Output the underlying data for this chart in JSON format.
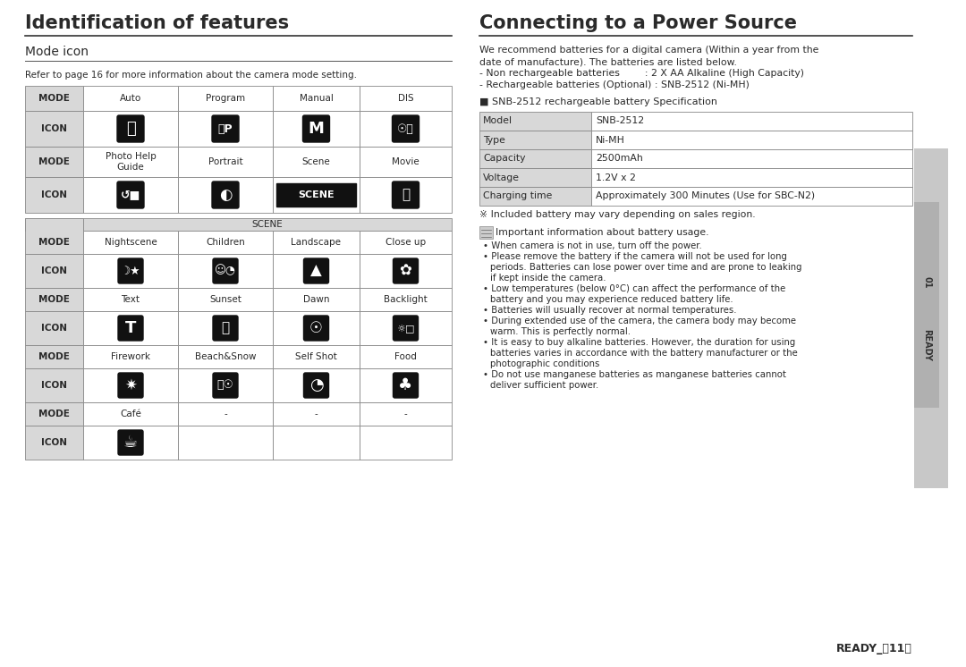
{
  "title_left": "Identification of features",
  "title_right": "Connecting to a Power Source",
  "subtitle_left": "Mode icon",
  "refer_text": "Refer to page 16 for more information about the camera mode setting.",
  "intro_lines": [
    "We recommend batteries for a digital camera (Within a year from the",
    "date of manufacture). The batteries are listed below.",
    "- Non rechargeable batteries        : 2 X AA Alkaline (High Capacity)",
    "- Rechargeable batteries (Optional) : SNB-2512 (Ni-MH)"
  ],
  "spec_title": "■ SNB-2512 rechargeable battery Specification",
  "battery_table": [
    [
      "Model",
      "SNB-2512"
    ],
    [
      "Type",
      "Ni-MH"
    ],
    [
      "Capacity",
      "2500mAh"
    ],
    [
      "Voltage",
      "1.2V x 2"
    ],
    [
      "Charging time",
      "Approximately 300 Minutes (Use for SBC-N2)"
    ]
  ],
  "included_note": "※ Included battery may vary depending on sales region.",
  "battery_bullets": [
    "Important information about battery usage.",
    "When camera is not in use, turn off the power.",
    "Please remove the battery if the camera will not be used for long\n    periods. Batteries can lose power over time and are prone to leaking\n    if kept inside the camera.",
    "Low temperatures (below 0°C) can affect the performance of the\n    battery and you may experience reduced battery life.",
    "Batteries will usually recover at normal temperatures.",
    "During extended use of the camera, the camera body may become\n    warm. This is perfectly normal.",
    "It is easy to buy alkaline batteries. However, the duration for using\n    batteries varies in accordance with the battery manufacturer or the\n    photographic conditions",
    "Do not use manganese batteries as manganese batteries cannot\n    deliver sufficient power."
  ],
  "bg_color": "#ffffff",
  "cell_bg_gray": "#d8d8d8",
  "cell_white": "#ffffff",
  "border_color": "#888888",
  "text_color": "#2a2a2a",
  "tab_color": "#b0b0b0",
  "tab_dark": "#888888"
}
